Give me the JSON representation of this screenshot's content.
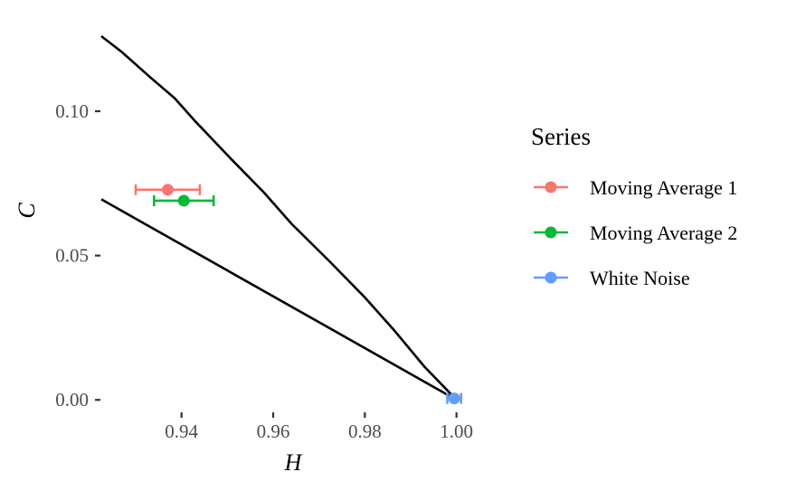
{
  "chart_data": {
    "type": "scatter",
    "xlabel": "H",
    "ylabel": "C",
    "xlim": [
      0.9225,
      1.005
    ],
    "ylim": [
      -0.004,
      0.126
    ],
    "x_ticks": [
      0.94,
      0.96,
      0.98,
      1.0
    ],
    "x_tick_labels": [
      "0.94",
      "0.96",
      "0.98",
      "1.00"
    ],
    "y_ticks": [
      0.0,
      0.05,
      0.1
    ],
    "y_tick_labels": [
      "0.00",
      "0.05",
      "0.10"
    ],
    "grid": false,
    "legend": {
      "title": "Series",
      "position": "right"
    },
    "bounds": {
      "upper": [
        [
          0.9225,
          0.126
        ],
        [
          0.927,
          0.1205
        ],
        [
          0.933,
          0.112
        ],
        [
          0.9385,
          0.1045
        ],
        [
          0.943,
          0.0965
        ],
        [
          0.9505,
          0.084
        ],
        [
          0.958,
          0.0718
        ],
        [
          0.964,
          0.061
        ],
        [
          0.9725,
          0.0477
        ],
        [
          0.98,
          0.0355
        ],
        [
          0.9865,
          0.0239
        ],
        [
          0.993,
          0.0115
        ],
        [
          1.0,
          0.0
        ]
      ],
      "lower": [
        [
          0.9225,
          0.0695
        ],
        [
          1.0,
          0.0
        ]
      ]
    },
    "series": [
      {
        "name": "Moving Average 1",
        "color": "#F8766D",
        "x": 0.937,
        "y": 0.0728,
        "x_err_low": 0.93,
        "x_err_high": 0.944
      },
      {
        "name": "Moving Average 2",
        "color": "#00BA38",
        "x": 0.9405,
        "y": 0.069,
        "x_err_low": 0.934,
        "x_err_high": 0.947
      },
      {
        "name": "White Noise",
        "color": "#619CFF",
        "x": 0.9995,
        "y": 0.0005,
        "x_err_low": 0.998,
        "x_err_high": 1.001
      }
    ]
  }
}
